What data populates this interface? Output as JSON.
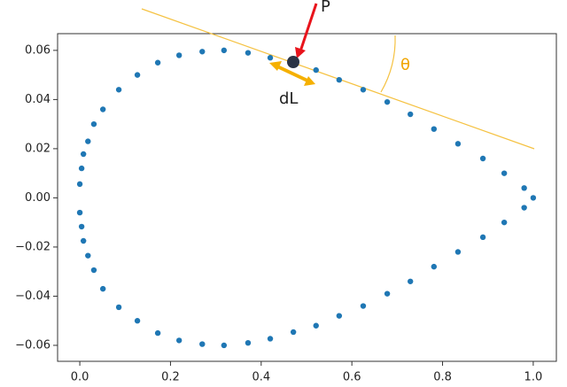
{
  "chart_data": {
    "type": "scatter",
    "x": [
      1.0,
      0.98,
      0.936,
      0.889,
      0.834,
      0.781,
      0.729,
      0.678,
      0.625,
      0.572,
      0.521,
      0.471,
      0.42,
      0.371,
      0.318,
      0.27,
      0.219,
      0.172,
      0.127,
      0.086,
      0.051,
      0.031,
      0.018,
      0.008,
      0.004,
      0.0,
      0.0,
      0.004,
      0.008,
      0.018,
      0.031,
      0.051,
      0.086,
      0.127,
      0.172,
      0.219,
      0.27,
      0.318,
      0.371,
      0.42,
      0.471,
      0.521,
      0.572,
      0.625,
      0.678,
      0.729,
      0.781,
      0.834,
      0.889,
      0.936,
      0.98
    ],
    "series": [
      {
        "color": "#1f77b4",
        "values": [
          0.0,
          0.004,
          0.01,
          0.016,
          0.022,
          0.028,
          0.034,
          0.039,
          0.044,
          0.048,
          0.052,
          0.0546,
          0.057,
          0.059,
          0.06,
          0.0595,
          0.058,
          0.055,
          0.05,
          0.044,
          0.036,
          0.03,
          0.023,
          0.0178,
          0.012,
          0.0056,
          -0.006,
          -0.0117,
          -0.0175,
          -0.0235,
          -0.0294,
          -0.037,
          -0.0445,
          -0.05,
          -0.055,
          -0.058,
          -0.0595,
          -0.06,
          -0.059,
          -0.0573,
          -0.0546,
          -0.052,
          -0.048,
          -0.044,
          -0.039,
          -0.034,
          -0.028,
          -0.022,
          -0.016,
          -0.01,
          -0.004
        ]
      }
    ],
    "xlim": [
      -0.049,
      1.051
    ],
    "ylim": [
      -0.0665,
      0.0668
    ],
    "xticks": [
      {
        "value": 0,
        "label": "0.0"
      },
      {
        "value": 0.2,
        "label": "0.2"
      },
      {
        "value": 0.4,
        "label": "0.4"
      },
      {
        "value": 0.6,
        "label": "0.6"
      },
      {
        "value": 0.8,
        "label": "0.8"
      },
      {
        "value": 1,
        "label": "1.0"
      }
    ],
    "yticks": [
      {
        "value": -0.06,
        "label": "−0.06"
      },
      {
        "value": -0.04,
        "label": "−0.04"
      },
      {
        "value": -0.02,
        "label": "−0.02"
      },
      {
        "value": 0,
        "label": "0.00"
      },
      {
        "value": 0.02,
        "label": "0.02"
      },
      {
        "value": 0.04,
        "label": "0.04"
      },
      {
        "value": 0.06,
        "label": "0.06"
      }
    ],
    "annotations": [
      "P",
      "dL",
      "θ"
    ]
  }
}
